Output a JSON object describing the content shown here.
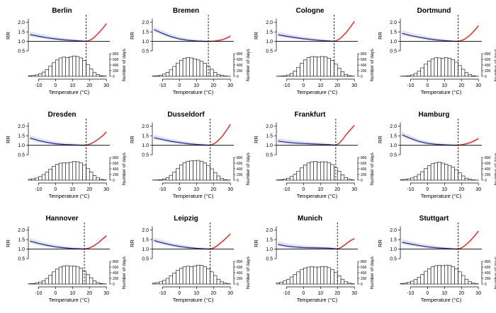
{
  "figure": {
    "panels_per_row": 4,
    "rr_axis_label": "RR",
    "days_axis_label": "Number of days",
    "x_axis_label": "Temperature (°C)"
  },
  "chart_data": [
    {
      "type": "line",
      "title": "Berlin",
      "threshold": 18,
      "xlim": [
        -16,
        32
      ],
      "ylim": [
        0.5,
        2.25
      ],
      "xticks": [
        -10,
        0,
        10,
        20,
        30
      ],
      "yticks": [
        0.5,
        1.0,
        1.5,
        2.0
      ],
      "days_ticks": [
        0,
        200,
        400,
        600,
        800
      ],
      "days_max": 800,
      "series": [
        {
          "color": "#2b2f8f",
          "x": [
            -15,
            -10,
            -5,
            0,
            5,
            10,
            15,
            18
          ],
          "y": [
            1.36,
            1.27,
            1.19,
            1.13,
            1.08,
            1.05,
            1.02,
            1.0
          ]
        },
        {
          "color": "#e0261d",
          "x": [
            18,
            20,
            22,
            25,
            28,
            30
          ],
          "y": [
            1.0,
            1.05,
            1.15,
            1.4,
            1.7,
            1.93
          ]
        }
      ],
      "histogram": {
        "bin_start": -15,
        "bin_width": 2,
        "counts": [
          20,
          30,
          50,
          90,
          150,
          240,
          360,
          480,
          580,
          650,
          680,
          660,
          690,
          720,
          700,
          650,
          560,
          420,
          260,
          130,
          60,
          20,
          8,
          0
        ]
      }
    },
    {
      "type": "line",
      "title": "Bremen",
      "threshold": 17,
      "xlim": [
        -16,
        32
      ],
      "ylim": [
        0.5,
        2.25
      ],
      "xticks": [
        -10,
        0,
        10,
        20,
        30
      ],
      "yticks": [
        0.5,
        1.0,
        1.5,
        2.0
      ],
      "days_ticks": [
        0,
        200,
        400,
        600,
        800
      ],
      "days_max": 800,
      "series": [
        {
          "color": "#2b2f8f",
          "x": [
            -15,
            -10,
            -5,
            0,
            5,
            10,
            15,
            17
          ],
          "y": [
            1.62,
            1.42,
            1.25,
            1.13,
            1.06,
            1.02,
            1.0,
            1.0
          ]
        },
        {
          "color": "#e0261d",
          "x": [
            17,
            20,
            22,
            25,
            28,
            30
          ],
          "y": [
            1.0,
            1.01,
            1.03,
            1.08,
            1.18,
            1.28
          ]
        }
      ],
      "histogram": {
        "bin_start": -15,
        "bin_width": 2,
        "counts": [
          10,
          20,
          40,
          80,
          140,
          230,
          350,
          470,
          570,
          640,
          670,
          650,
          620,
          580,
          530,
          460,
          360,
          250,
          140,
          70,
          30,
          10,
          3,
          0
        ]
      }
    },
    {
      "type": "line",
      "title": "Cologne",
      "threshold": 18,
      "xlim": [
        -16,
        32
      ],
      "ylim": [
        0.5,
        2.25
      ],
      "xticks": [
        -10,
        0,
        10,
        20,
        30
      ],
      "yticks": [
        0.5,
        1.0,
        1.5,
        2.0
      ],
      "days_ticks": [
        0,
        200,
        400,
        600,
        800
      ],
      "days_max": 800,
      "series": [
        {
          "color": "#2b2f8f",
          "x": [
            -15,
            -10,
            -5,
            0,
            5,
            10,
            15,
            18
          ],
          "y": [
            1.35,
            1.27,
            1.2,
            1.14,
            1.09,
            1.05,
            1.02,
            1.0
          ]
        },
        {
          "color": "#e0261d",
          "x": [
            18,
            20,
            22,
            25,
            28,
            30
          ],
          "y": [
            1.0,
            1.06,
            1.18,
            1.45,
            1.8,
            2.05
          ]
        }
      ],
      "histogram": {
        "bin_start": -15,
        "bin_width": 2,
        "counts": [
          5,
          10,
          20,
          50,
          100,
          190,
          320,
          460,
          580,
          660,
          700,
          690,
          680,
          700,
          690,
          640,
          560,
          430,
          290,
          160,
          70,
          25,
          8,
          0
        ]
      }
    },
    {
      "type": "line",
      "title": "Dortmund",
      "threshold": 18,
      "xlim": [
        -16,
        32
      ],
      "ylim": [
        0.5,
        2.25
      ],
      "xticks": [
        -10,
        0,
        10,
        20,
        30
      ],
      "yticks": [
        0.5,
        1.0,
        1.5,
        2.0
      ],
      "days_ticks": [
        0,
        200,
        400,
        600,
        800
      ],
      "days_max": 800,
      "series": [
        {
          "color": "#2b2f8f",
          "x": [
            -15,
            -10,
            -5,
            0,
            5,
            10,
            15,
            18
          ],
          "y": [
            1.42,
            1.31,
            1.22,
            1.14,
            1.08,
            1.04,
            1.01,
            1.0
          ]
        },
        {
          "color": "#e0261d",
          "x": [
            18,
            20,
            22,
            25,
            28,
            30
          ],
          "y": [
            1.0,
            1.04,
            1.12,
            1.32,
            1.6,
            1.82
          ]
        }
      ],
      "histogram": {
        "bin_start": -15,
        "bin_width": 2,
        "counts": [
          5,
          10,
          20,
          50,
          100,
          180,
          300,
          430,
          540,
          620,
          660,
          650,
          640,
          660,
          640,
          590,
          500,
          380,
          250,
          130,
          60,
          20,
          5,
          0
        ]
      }
    },
    {
      "type": "line",
      "title": "Dresden",
      "threshold": 18,
      "xlim": [
        -16,
        32
      ],
      "ylim": [
        0.5,
        2.25
      ],
      "xticks": [
        -10,
        0,
        10,
        20,
        30
      ],
      "yticks": [
        0.5,
        1.0,
        1.5,
        2.0
      ],
      "days_ticks": [
        0,
        200,
        400,
        600,
        800
      ],
      "days_max": 800,
      "series": [
        {
          "color": "#2b2f8f",
          "x": [
            -15,
            -10,
            -5,
            0,
            5,
            10,
            15,
            18
          ],
          "y": [
            1.38,
            1.25,
            1.15,
            1.08,
            1.04,
            1.02,
            1.0,
            1.0
          ]
        },
        {
          "color": "#e0261d",
          "x": [
            18,
            20,
            22,
            25,
            28,
            30
          ],
          "y": [
            1.0,
            1.05,
            1.13,
            1.3,
            1.52,
            1.7
          ]
        }
      ],
      "histogram": {
        "bin_start": -15,
        "bin_width": 2,
        "counts": [
          30,
          50,
          80,
          130,
          200,
          290,
          390,
          490,
          560,
          600,
          620,
          610,
          630,
          660,
          650,
          610,
          530,
          420,
          290,
          160,
          80,
          30,
          10,
          0
        ]
      }
    },
    {
      "type": "line",
      "title": "Dusseldorf",
      "threshold": 18,
      "xlim": [
        -16,
        32
      ],
      "ylim": [
        0.5,
        2.25
      ],
      "xticks": [
        -10,
        0,
        10,
        20,
        30
      ],
      "yticks": [
        0.5,
        1.0,
        1.5,
        2.0
      ],
      "days_ticks": [
        0,
        200,
        400,
        600,
        800
      ],
      "days_max": 800,
      "series": [
        {
          "color": "#2b2f8f",
          "x": [
            -15,
            -10,
            -5,
            0,
            5,
            10,
            15,
            18
          ],
          "y": [
            1.4,
            1.3,
            1.21,
            1.14,
            1.08,
            1.04,
            1.01,
            1.0
          ]
        },
        {
          "color": "#e0261d",
          "x": [
            18,
            20,
            22,
            25,
            28,
            30
          ],
          "y": [
            1.0,
            1.06,
            1.18,
            1.45,
            1.82,
            2.1
          ]
        }
      ],
      "histogram": {
        "bin_start": -15,
        "bin_width": 2,
        "counts": [
          5,
          10,
          20,
          40,
          90,
          170,
          290,
          420,
          540,
          620,
          670,
          680,
          690,
          700,
          670,
          610,
          520,
          400,
          270,
          150,
          60,
          20,
          5,
          0
        ]
      }
    },
    {
      "type": "line",
      "title": "Frankfurt",
      "threshold": 19,
      "xlim": [
        -16,
        32
      ],
      "ylim": [
        0.5,
        2.25
      ],
      "xticks": [
        -10,
        0,
        10,
        20,
        30
      ],
      "yticks": [
        0.5,
        1.0,
        1.5,
        2.0
      ],
      "days_ticks": [
        0,
        200,
        400,
        600,
        800
      ],
      "days_max": 800,
      "series": [
        {
          "color": "#2b2f8f",
          "x": [
            -15,
            -10,
            -5,
            0,
            5,
            10,
            15,
            19
          ],
          "y": [
            1.22,
            1.16,
            1.12,
            1.09,
            1.07,
            1.05,
            1.03,
            1.0
          ]
        },
        {
          "color": "#e0261d",
          "x": [
            19,
            21,
            23,
            25,
            28,
            30
          ],
          "y": [
            1.0,
            1.1,
            1.3,
            1.55,
            1.85,
            2.05
          ]
        }
      ],
      "histogram": {
        "bin_start": -15,
        "bin_width": 2,
        "counts": [
          10,
          20,
          40,
          70,
          130,
          210,
          320,
          440,
          540,
          610,
          650,
          660,
          640,
          650,
          650,
          620,
          550,
          450,
          320,
          190,
          90,
          35,
          10,
          0
        ]
      }
    },
    {
      "type": "line",
      "title": "Hamburg",
      "threshold": 18,
      "xlim": [
        -16,
        32
      ],
      "ylim": [
        0.5,
        2.25
      ],
      "xticks": [
        -10,
        0,
        10,
        20,
        30
      ],
      "yticks": [
        0.5,
        1.0,
        1.5,
        2.0
      ],
      "days_ticks": [
        0,
        200,
        400,
        600,
        800
      ],
      "days_max": 800,
      "series": [
        {
          "color": "#2b2f8f",
          "x": [
            -15,
            -10,
            -5,
            0,
            5,
            10,
            15,
            18
          ],
          "y": [
            1.55,
            1.36,
            1.2,
            1.1,
            1.05,
            1.02,
            1.0,
            1.0
          ]
        },
        {
          "color": "#e0261d",
          "x": [
            18,
            20,
            22,
            25,
            28,
            30
          ],
          "y": [
            1.0,
            1.02,
            1.06,
            1.13,
            1.25,
            1.35
          ]
        }
      ],
      "histogram": {
        "bin_start": -15,
        "bin_width": 2,
        "counts": [
          20,
          30,
          50,
          80,
          130,
          200,
          300,
          410,
          510,
          580,
          620,
          640,
          600,
          560,
          520,
          460,
          370,
          260,
          150,
          70,
          30,
          10,
          3,
          0
        ]
      }
    },
    {
      "type": "line",
      "title": "Hannover",
      "threshold": 17,
      "xlim": [
        -16,
        32
      ],
      "ylim": [
        0.5,
        2.25
      ],
      "xticks": [
        -10,
        0,
        10,
        20,
        30
      ],
      "yticks": [
        0.5,
        1.0,
        1.5,
        2.0
      ],
      "days_ticks": [
        0,
        200,
        400,
        600,
        800
      ],
      "days_max": 800,
      "series": [
        {
          "color": "#2b2f8f",
          "x": [
            -15,
            -10,
            -5,
            0,
            5,
            10,
            15,
            17
          ],
          "y": [
            1.42,
            1.3,
            1.2,
            1.12,
            1.07,
            1.03,
            1.01,
            1.0
          ]
        },
        {
          "color": "#e0261d",
          "x": [
            17,
            20,
            22,
            25,
            28,
            30
          ],
          "y": [
            1.0,
            1.06,
            1.14,
            1.32,
            1.55,
            1.7
          ]
        }
      ],
      "histogram": {
        "bin_start": -15,
        "bin_width": 2,
        "counts": [
          10,
          20,
          40,
          70,
          120,
          200,
          310,
          430,
          530,
          600,
          640,
          650,
          630,
          640,
          620,
          560,
          460,
          340,
          220,
          110,
          50,
          15,
          5,
          0
        ]
      }
    },
    {
      "type": "line",
      "title": "Leipzig",
      "threshold": 18,
      "xlim": [
        -16,
        32
      ],
      "ylim": [
        0.5,
        2.25
      ],
      "xticks": [
        -10,
        0,
        10,
        20,
        30
      ],
      "yticks": [
        0.5,
        1.0,
        1.5,
        2.0
      ],
      "days_ticks": [
        0,
        200,
        400,
        600,
        800
      ],
      "days_max": 800,
      "series": [
        {
          "color": "#2b2f8f",
          "x": [
            -15,
            -10,
            -5,
            0,
            5,
            10,
            15,
            18
          ],
          "y": [
            1.45,
            1.33,
            1.22,
            1.14,
            1.08,
            1.04,
            1.01,
            1.0
          ]
        },
        {
          "color": "#e0261d",
          "x": [
            18,
            20,
            22,
            25,
            28,
            30
          ],
          "y": [
            1.0,
            1.06,
            1.16,
            1.38,
            1.62,
            1.8
          ]
        }
      ],
      "histogram": {
        "bin_start": -15,
        "bin_width": 2,
        "counts": [
          30,
          50,
          80,
          130,
          200,
          290,
          390,
          490,
          560,
          610,
          630,
          620,
          640,
          670,
          660,
          620,
          540,
          430,
          300,
          170,
          80,
          30,
          10,
          0
        ]
      }
    },
    {
      "type": "line",
      "title": "Munich",
      "threshold": 20,
      "xlim": [
        -16,
        32
      ],
      "ylim": [
        0.5,
        2.25
      ],
      "xticks": [
        -10,
        0,
        10,
        20,
        30
      ],
      "yticks": [
        0.5,
        1.0,
        1.5,
        2.0
      ],
      "days_ticks": [
        0,
        200,
        400,
        600,
        800
      ],
      "days_max": 800,
      "series": [
        {
          "color": "#2b2f8f",
          "x": [
            -15,
            -10,
            -5,
            0,
            5,
            10,
            15,
            20
          ],
          "y": [
            1.25,
            1.16,
            1.11,
            1.08,
            1.07,
            1.06,
            1.05,
            1.0
          ]
        },
        {
          "color": "#e0261d",
          "x": [
            20,
            22,
            24,
            26,
            28,
            30
          ],
          "y": [
            1.0,
            1.08,
            1.2,
            1.34,
            1.46,
            1.55
          ]
        }
      ],
      "histogram": {
        "bin_start": -15,
        "bin_width": 2,
        "counts": [
          40,
          70,
          110,
          170,
          250,
          340,
          430,
          510,
          570,
          600,
          610,
          600,
          600,
          620,
          620,
          580,
          510,
          410,
          290,
          170,
          80,
          30,
          10,
          0
        ]
      }
    },
    {
      "type": "line",
      "title": "Stuttgart",
      "threshold": 18,
      "xlim": [
        -16,
        32
      ],
      "ylim": [
        0.5,
        2.25
      ],
      "xticks": [
        -10,
        0,
        10,
        20,
        30
      ],
      "yticks": [
        0.5,
        1.0,
        1.5,
        2.0
      ],
      "days_ticks": [
        0,
        200,
        400,
        600,
        800
      ],
      "days_max": 800,
      "series": [
        {
          "color": "#2b2f8f",
          "x": [
            -15,
            -10,
            -5,
            0,
            5,
            10,
            15,
            18
          ],
          "y": [
            1.36,
            1.27,
            1.19,
            1.12,
            1.07,
            1.04,
            1.01,
            1.0
          ]
        },
        {
          "color": "#e0261d",
          "x": [
            18,
            20,
            22,
            25,
            28,
            30
          ],
          "y": [
            1.0,
            1.06,
            1.18,
            1.42,
            1.72,
            1.95
          ]
        }
      ],
      "histogram": {
        "bin_start": -15,
        "bin_width": 2,
        "counts": [
          20,
          30,
          60,
          100,
          160,
          240,
          340,
          450,
          540,
          610,
          650,
          660,
          650,
          670,
          660,
          620,
          540,
          430,
          300,
          170,
          80,
          30,
          10,
          0
        ]
      }
    }
  ]
}
